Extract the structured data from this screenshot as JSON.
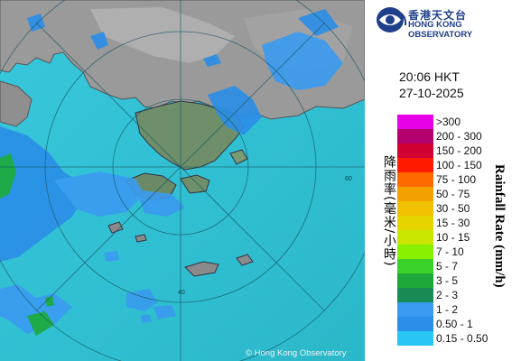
{
  "header": {
    "org_cn": "香港天文台",
    "org_en": "HONG KONG OBSERVATORY",
    "logo_icon": "hko-logo-icon"
  },
  "timestamp": {
    "time": "20:06 HKT",
    "date": "27-10-2025"
  },
  "legend": {
    "title_cn": "降雨率(毫米/小時)",
    "title_en": "Rainfall Rate (mm/h)",
    "items": [
      {
        "label": ">300",
        "color": "#e600e6"
      },
      {
        "label": "200 - 300",
        "color": "#b4006e"
      },
      {
        "label": "150 - 200",
        "color": "#d20032"
      },
      {
        "label": "100 - 150",
        "color": "#ff1a00"
      },
      {
        "label": "75 - 100",
        "color": "#ff6a00"
      },
      {
        "label": "50 - 75",
        "color": "#f2a100"
      },
      {
        "label": "30 - 50",
        "color": "#f2c200"
      },
      {
        "label": "15 - 30",
        "color": "#e6d400"
      },
      {
        "label": "10 - 15",
        "color": "#c8e600"
      },
      {
        "label": "7 - 10",
        "color": "#88f000"
      },
      {
        "label": "5 - 7",
        "color": "#3ad12a"
      },
      {
        "label": "3 - 5",
        "color": "#1ca83a"
      },
      {
        "label": "2 - 3",
        "color": "#1a8a55"
      },
      {
        "label": "1 - 2",
        "color": "#3a9bf0"
      },
      {
        "label": "0.50 - 1",
        "color": "#2b8ee8"
      },
      {
        "label": "0.15 - 0.50",
        "color": "#27c6f3"
      }
    ]
  },
  "map": {
    "range_label": "60",
    "range_label_inner": "40",
    "copyright": "© Hong Kong Observatory",
    "sea_color": "#31c3d6",
    "land_color": "#9b9b9b"
  }
}
